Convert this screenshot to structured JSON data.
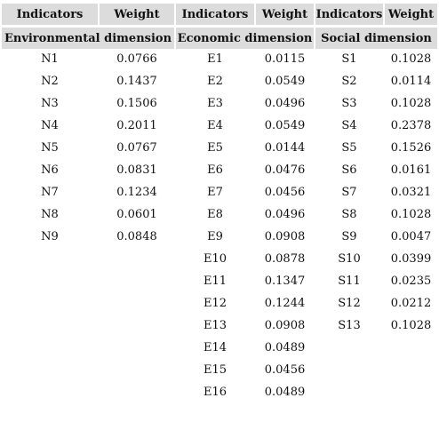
{
  "header": [
    "Indicators",
    "Weight",
    "Indicators",
    "Weight",
    "Indicators",
    "Weight"
  ],
  "dimensions": [
    {
      "name": "Environmental dimension",
      "rows": [
        [
          "N1",
          0.0766
        ],
        [
          "N2",
          0.1437
        ],
        [
          "N3",
          0.1506
        ],
        [
          "N4",
          0.2011
        ],
        [
          "N5",
          0.0767
        ],
        [
          "N6",
          0.0831
        ],
        [
          "N7",
          0.1234
        ],
        [
          "N8",
          0.0601
        ],
        [
          "N9",
          0.0848
        ]
      ]
    },
    {
      "name": "Economic dimension",
      "rows": [
        [
          "E1",
          0.0115
        ],
        [
          "E2",
          0.0549
        ],
        [
          "E3",
          0.0496
        ],
        [
          "E4",
          0.0549
        ],
        [
          "E5",
          0.0144
        ],
        [
          "E6",
          0.0476
        ],
        [
          "E7",
          0.0456
        ],
        [
          "E8",
          0.0496
        ],
        [
          "E9",
          0.0908
        ],
        [
          "E10",
          0.0878
        ],
        [
          "E11",
          0.1347
        ],
        [
          "E12",
          0.1244
        ],
        [
          "E13",
          0.0908
        ],
        [
          "E14",
          0.0489
        ],
        [
          "E15",
          0.0456
        ],
        [
          "E16",
          0.0489
        ]
      ]
    },
    {
      "name": "Social dimension",
      "rows": [
        [
          "S1",
          0.1028
        ],
        [
          "S2",
          0.0114
        ],
        [
          "S3",
          0.1028
        ],
        [
          "S4",
          0.2378
        ],
        [
          "S5",
          0.1526
        ],
        [
          "S6",
          0.0161
        ],
        [
          "S7",
          0.0321
        ],
        [
          "S8",
          0.1028
        ],
        [
          "S9",
          0.0047
        ],
        [
          "S10",
          0.0399
        ],
        [
          "S11",
          0.0235
        ],
        [
          "S12",
          0.0212
        ],
        [
          "S13",
          0.1028
        ]
      ]
    }
  ]
}
